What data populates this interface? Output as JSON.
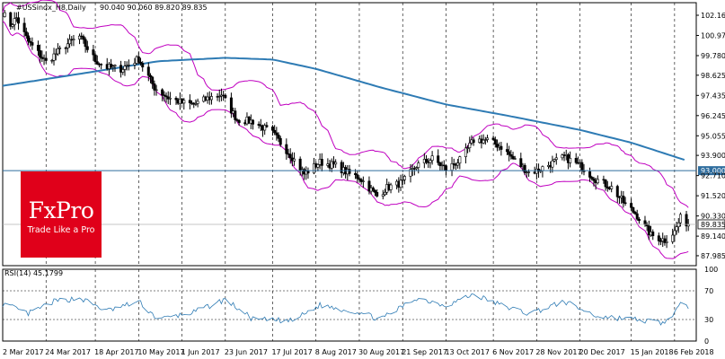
{
  "chart_data": {
    "type": "candlestick",
    "header": {
      "symbol_label": "#USSindx_H8,Daily",
      "ohlc_text": "90.040 90.060 89.820 89.835"
    },
    "x_tick_labels": [
      "2 Mar 2017",
      "24 Mar 2017",
      "18 Apr 2017",
      "10 May 2017",
      "1 Jun 2017",
      "23 Jun 2017",
      "17 Jul 2017",
      "8 Aug 2017",
      "30 Aug 2017",
      "21 Sep 2017",
      "13 Oct 2017",
      "6 Nov 2017",
      "28 Nov 2017",
      "20 Dec 2017",
      "15 Jan 2018",
      "6 Feb 2018"
    ],
    "price_axis": {
      "range": [
        87.4,
        102.9
      ],
      "tick_labels": [
        "102.160",
        "100.970",
        "99.780",
        "98.625",
        "97.435",
        "96.245",
        "95.055",
        "93.900",
        "92.710",
        "91.520",
        "90.330",
        "89.140",
        "87.985"
      ]
    },
    "horizontal_level": {
      "value": 93.0,
      "label": "93.000",
      "color": "#2f6d9e"
    },
    "last_price": {
      "value": 89.835,
      "label": "89.835"
    },
    "bollinger_color": "#c000c0",
    "ma_color": "#2e7bb4",
    "ma_200_keypoints": [
      {
        "date": "2017-03-02",
        "value": 98.0
      },
      {
        "date": "2017-04-18",
        "value": 98.85
      },
      {
        "date": "2017-05-20",
        "value": 99.45
      },
      {
        "date": "2017-06-23",
        "value": 99.65
      },
      {
        "date": "2017-07-17",
        "value": 99.55
      },
      {
        "date": "2017-08-08",
        "value": 99.0
      },
      {
        "date": "2017-09-10",
        "value": 97.9
      },
      {
        "date": "2017-10-13",
        "value": 96.9
      },
      {
        "date": "2017-11-15",
        "value": 96.2
      },
      {
        "date": "2017-12-20",
        "value": 95.4
      },
      {
        "date": "2018-01-15",
        "value": 94.65
      },
      {
        "date": "2018-02-12",
        "value": 93.6
      }
    ],
    "price_keypoints": [
      {
        "date": "2017-03-02",
        "value": 102.3
      },
      {
        "date": "2017-03-06",
        "value": 101.6
      },
      {
        "date": "2017-03-09",
        "value": 102.0
      },
      {
        "date": "2017-03-15",
        "value": 100.6
      },
      {
        "date": "2017-03-24",
        "value": 99.4
      },
      {
        "date": "2017-04-03",
        "value": 100.4
      },
      {
        "date": "2017-04-10",
        "value": 100.9
      },
      {
        "date": "2017-04-18",
        "value": 99.5
      },
      {
        "date": "2017-04-24",
        "value": 99.1
      },
      {
        "date": "2017-05-01",
        "value": 99.0
      },
      {
        "date": "2017-05-10",
        "value": 99.6
      },
      {
        "date": "2017-05-18",
        "value": 97.9
      },
      {
        "date": "2017-05-25",
        "value": 97.3
      },
      {
        "date": "2017-06-01",
        "value": 97.0
      },
      {
        "date": "2017-06-07",
        "value": 96.9
      },
      {
        "date": "2017-06-15",
        "value": 97.3
      },
      {
        "date": "2017-06-21",
        "value": 97.5
      },
      {
        "date": "2017-06-29",
        "value": 96.0
      },
      {
        "date": "2017-07-07",
        "value": 95.9
      },
      {
        "date": "2017-07-17",
        "value": 95.2
      },
      {
        "date": "2017-07-27",
        "value": 93.8
      },
      {
        "date": "2017-08-02",
        "value": 92.8
      },
      {
        "date": "2017-08-10",
        "value": 93.5
      },
      {
        "date": "2017-08-18",
        "value": 93.3
      },
      {
        "date": "2017-08-25",
        "value": 92.8
      },
      {
        "date": "2017-08-30",
        "value": 92.6
      },
      {
        "date": "2017-09-08",
        "value": 91.5
      },
      {
        "date": "2017-09-13",
        "value": 92.0
      },
      {
        "date": "2017-09-21",
        "value": 92.3
      },
      {
        "date": "2017-09-28",
        "value": 93.3
      },
      {
        "date": "2017-10-06",
        "value": 93.7
      },
      {
        "date": "2017-10-13",
        "value": 93.1
      },
      {
        "date": "2017-10-20",
        "value": 93.6
      },
      {
        "date": "2017-10-27",
        "value": 94.8
      },
      {
        "date": "2017-11-03",
        "value": 94.8
      },
      {
        "date": "2017-11-10",
        "value": 94.4
      },
      {
        "date": "2017-11-16",
        "value": 93.7
      },
      {
        "date": "2017-11-24",
        "value": 92.9
      },
      {
        "date": "2017-11-28",
        "value": 93.0
      },
      {
        "date": "2017-12-05",
        "value": 93.4
      },
      {
        "date": "2017-12-12",
        "value": 93.8
      },
      {
        "date": "2017-12-20",
        "value": 93.3
      },
      {
        "date": "2017-12-28",
        "value": 92.5
      },
      {
        "date": "2018-01-05",
        "value": 92.0
      },
      {
        "date": "2018-01-12",
        "value": 91.0
      },
      {
        "date": "2018-01-17",
        "value": 90.5
      },
      {
        "date": "2018-01-25",
        "value": 89.2
      },
      {
        "date": "2018-02-01",
        "value": 88.9
      },
      {
        "date": "2018-02-06",
        "value": 89.4
      },
      {
        "date": "2018-02-09",
        "value": 90.2
      },
      {
        "date": "2018-02-13",
        "value": 89.835
      }
    ],
    "rsi": {
      "label": "RSI(14) 45.1799",
      "range": [
        0,
        100
      ],
      "tick_labels": [
        "100",
        "70",
        "30",
        "0"
      ],
      "levels": [
        70,
        30
      ],
      "keypoints": [
        {
          "date": "2017-03-02",
          "value": 52
        },
        {
          "date": "2017-03-15",
          "value": 38
        },
        {
          "date": "2017-03-28",
          "value": 55
        },
        {
          "date": "2017-04-10",
          "value": 60
        },
        {
          "date": "2017-04-24",
          "value": 42
        },
        {
          "date": "2017-05-10",
          "value": 55
        },
        {
          "date": "2017-05-20",
          "value": 30
        },
        {
          "date": "2017-06-07",
          "value": 40
        },
        {
          "date": "2017-06-23",
          "value": 58
        },
        {
          "date": "2017-07-07",
          "value": 30
        },
        {
          "date": "2017-07-27",
          "value": 28
        },
        {
          "date": "2017-08-10",
          "value": 50
        },
        {
          "date": "2017-08-30",
          "value": 40
        },
        {
          "date": "2017-09-10",
          "value": 30
        },
        {
          "date": "2017-09-28",
          "value": 60
        },
        {
          "date": "2017-10-13",
          "value": 50
        },
        {
          "date": "2017-10-27",
          "value": 65
        },
        {
          "date": "2017-11-10",
          "value": 50
        },
        {
          "date": "2017-11-24",
          "value": 38
        },
        {
          "date": "2017-12-12",
          "value": 55
        },
        {
          "date": "2017-12-28",
          "value": 35
        },
        {
          "date": "2018-01-17",
          "value": 30
        },
        {
          "date": "2018-02-01",
          "value": 25
        },
        {
          "date": "2018-02-09",
          "value": 50
        },
        {
          "date": "2018-02-13",
          "value": 45.1799
        }
      ]
    }
  },
  "watermark": {
    "brand": "FxPro",
    "tagline": "Trade Like a Pro",
    "color": "#e0001a"
  }
}
